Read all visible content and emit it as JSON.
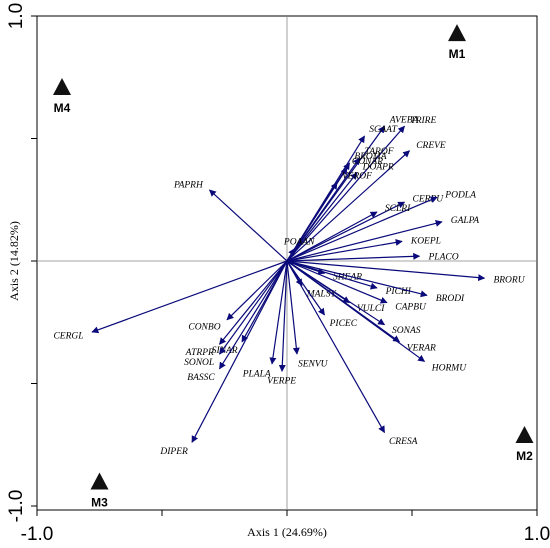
{
  "chart_data": {
    "type": "scatter",
    "subtype": "ordination-biplot",
    "xlabel": "Axis 1 (24.69%)",
    "ylabel": "Axis 2 (14.82%)",
    "xlim": [
      -1.0,
      1.0
    ],
    "ylim": [
      -1.0,
      1.0
    ],
    "x_ticks": [
      "-1.0",
      "1.0"
    ],
    "y_ticks": [
      "1.0",
      "-1.0"
    ],
    "grid": false,
    "colors": {
      "vectors": "#0a0a7a",
      "sites": "#111111",
      "axes": "#000000",
      "reference_lines": "#888888"
    },
    "species_vectors": [
      {
        "name": "AVEBA",
        "x": 0.39,
        "y": 0.55
      },
      {
        "name": "TRIRE",
        "x": 0.47,
        "y": 0.55
      },
      {
        "name": "SCAAT",
        "x": 0.31,
        "y": 0.51
      },
      {
        "name": "TAROF",
        "x": 0.29,
        "y": 0.42
      },
      {
        "name": "BROMA",
        "x": 0.25,
        "y": 0.4
      },
      {
        "name": "CREVE",
        "x": 0.49,
        "y": 0.45
      },
      {
        "name": "CONAR",
        "x": 0.24,
        "y": 0.38
      },
      {
        "name": "DOAPR",
        "x": 0.28,
        "y": 0.36
      },
      {
        "name": "VEROF",
        "x": 0.2,
        "y": 0.32
      },
      {
        "name": "CERPU",
        "x": 0.47,
        "y": 0.24
      },
      {
        "name": "PODLA",
        "x": 0.6,
        "y": 0.26
      },
      {
        "name": "SCLRI",
        "x": 0.36,
        "y": 0.2
      },
      {
        "name": "GALPA",
        "x": 0.62,
        "y": 0.16
      },
      {
        "name": "POAAN",
        "x": 0.03,
        "y": 0.05
      },
      {
        "name": "PAPRH",
        "x": -0.31,
        "y": 0.29
      },
      {
        "name": "KOEPL",
        "x": 0.46,
        "y": 0.08
      },
      {
        "name": "PLACO",
        "x": 0.53,
        "y": 0.02
      },
      {
        "name": "BRORU",
        "x": 0.79,
        "y": -0.07
      },
      {
        "name": "SHEAR",
        "x": 0.15,
        "y": -0.05
      },
      {
        "name": "PICHI",
        "x": 0.36,
        "y": -0.11
      },
      {
        "name": "BRODI",
        "x": 0.56,
        "y": -0.14
      },
      {
        "name": "CAPBU",
        "x": 0.4,
        "y": -0.17
      },
      {
        "name": "MALSY",
        "x": 0.06,
        "y": -0.1
      },
      {
        "name": "VULCI",
        "x": 0.25,
        "y": -0.17
      },
      {
        "name": "SONAS",
        "x": 0.39,
        "y": -0.26
      },
      {
        "name": "PICEC",
        "x": 0.15,
        "y": -0.22
      },
      {
        "name": "VERAR",
        "x": 0.45,
        "y": -0.33
      },
      {
        "name": "HORMU",
        "x": 0.55,
        "y": -0.41
      },
      {
        "name": "SENVU",
        "x": 0.04,
        "y": -0.38
      },
      {
        "name": "CRESA",
        "x": 0.39,
        "y": -0.7
      },
      {
        "name": "CONBO",
        "x": -0.24,
        "y": -0.24
      },
      {
        "name": "ATRPR",
        "x": -0.27,
        "y": -0.34
      },
      {
        "name": "SINAR",
        "x": -0.18,
        "y": -0.33
      },
      {
        "name": "SONOL",
        "x": -0.27,
        "y": -0.38
      },
      {
        "name": "PLALA",
        "x": -0.06,
        "y": -0.42
      },
      {
        "name": "BASSC",
        "x": -0.27,
        "y": -0.44
      },
      {
        "name": "VERPE",
        "x": -0.02,
        "y": -0.45
      },
      {
        "name": "DIPER",
        "x": -0.38,
        "y": -0.74
      },
      {
        "name": "CERGL",
        "x": -0.78,
        "y": -0.29
      }
    ],
    "sites": [
      {
        "name": "M1",
        "x": 0.68,
        "y": 0.93
      },
      {
        "name": "M2",
        "x": 0.95,
        "y": -0.71
      },
      {
        "name": "M3",
        "x": -0.75,
        "y": -0.9
      },
      {
        "name": "M4",
        "x": -0.9,
        "y": 0.71
      }
    ]
  }
}
